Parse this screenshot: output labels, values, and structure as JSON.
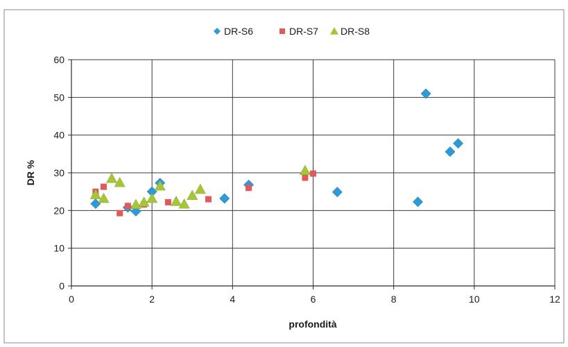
{
  "chart_data": {
    "type": "scatter",
    "title": "",
    "xlabel": "profondità",
    "ylabel": "DR %",
    "xlim": [
      0,
      12
    ],
    "ylim": [
      0,
      60
    ],
    "x_ticks": [
      0,
      2,
      4,
      6,
      8,
      10,
      12
    ],
    "y_ticks": [
      0,
      10,
      20,
      30,
      40,
      50,
      60
    ],
    "grid": "major gridlines on both axes",
    "legend_position": "top",
    "series": [
      {
        "name": "DR-S6",
        "marker": "diamond",
        "color": "#2e9bd6",
        "points": [
          {
            "x": 0.6,
            "y": 21.8
          },
          {
            "x": 1.4,
            "y": 20.8
          },
          {
            "x": 1.6,
            "y": 19.8
          },
          {
            "x": 2.0,
            "y": 25.0
          },
          {
            "x": 2.2,
            "y": 27.3
          },
          {
            "x": 3.8,
            "y": 23.2
          },
          {
            "x": 4.4,
            "y": 26.8
          },
          {
            "x": 6.6,
            "y": 24.9
          },
          {
            "x": 8.6,
            "y": 22.3
          },
          {
            "x": 8.8,
            "y": 51.0
          },
          {
            "x": 9.4,
            "y": 35.6
          },
          {
            "x": 9.6,
            "y": 37.8
          }
        ]
      },
      {
        "name": "DR-S7",
        "marker": "square",
        "color": "#e05a5a",
        "points": [
          {
            "x": 0.6,
            "y": 25.0
          },
          {
            "x": 0.8,
            "y": 26.3
          },
          {
            "x": 1.2,
            "y": 19.3
          },
          {
            "x": 1.4,
            "y": 21.2
          },
          {
            "x": 1.8,
            "y": 21.6
          },
          {
            "x": 2.4,
            "y": 22.2
          },
          {
            "x": 3.4,
            "y": 23.0
          },
          {
            "x": 4.4,
            "y": 26.0
          },
          {
            "x": 5.8,
            "y": 28.7
          },
          {
            "x": 6.0,
            "y": 29.8
          }
        ]
      },
      {
        "name": "DR-S8",
        "marker": "triangle",
        "color": "#a5c63b",
        "points": [
          {
            "x": 0.6,
            "y": 24.2
          },
          {
            "x": 0.8,
            "y": 23.2
          },
          {
            "x": 1.0,
            "y": 28.5
          },
          {
            "x": 1.2,
            "y": 27.4
          },
          {
            "x": 1.6,
            "y": 21.6
          },
          {
            "x": 1.8,
            "y": 22.2
          },
          {
            "x": 2.0,
            "y": 23.2
          },
          {
            "x": 2.2,
            "y": 26.5
          },
          {
            "x": 2.6,
            "y": 22.4
          },
          {
            "x": 2.8,
            "y": 21.7
          },
          {
            "x": 3.0,
            "y": 24.0
          },
          {
            "x": 3.2,
            "y": 25.6
          },
          {
            "x": 5.8,
            "y": 30.6
          }
        ]
      }
    ]
  }
}
